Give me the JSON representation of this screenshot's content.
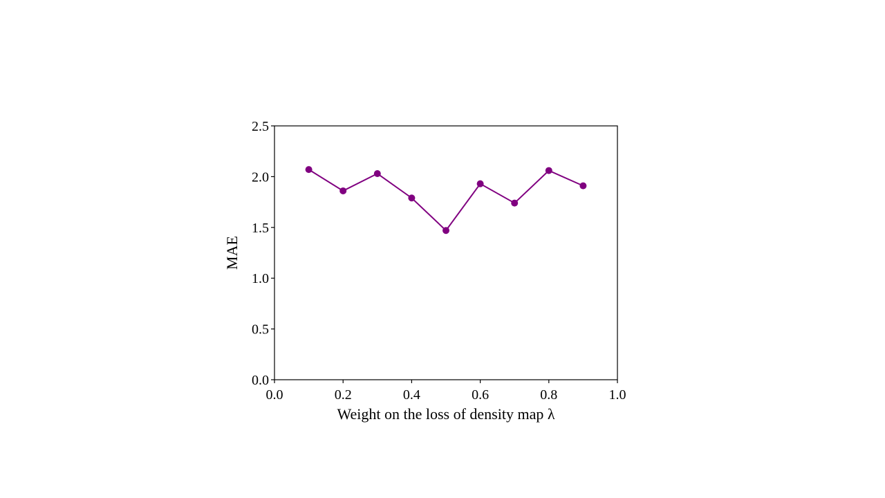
{
  "chart_data": {
    "type": "line",
    "title": "",
    "xlabel": "Weight on the loss of density map λ",
    "ylabel": "MAE",
    "xlim": [
      0.0,
      1.0
    ],
    "ylim": [
      0.0,
      2.5
    ],
    "x_ticks": [
      "0.0",
      "0.2",
      "0.4",
      "0.6",
      "0.8",
      "1.0"
    ],
    "y_ticks": [
      "0.0",
      "0.5",
      "1.0",
      "1.5",
      "2.0",
      "2.5"
    ],
    "grid": false,
    "legend": "none",
    "series": [
      {
        "color": "#800080",
        "marker": "circle",
        "x": [
          0.1,
          0.2,
          0.3,
          0.4,
          0.5,
          0.6,
          0.7,
          0.8,
          0.9
        ],
        "y": [
          2.07,
          1.86,
          2.03,
          1.79,
          1.47,
          1.93,
          1.74,
          2.06,
          1.91
        ]
      }
    ]
  }
}
